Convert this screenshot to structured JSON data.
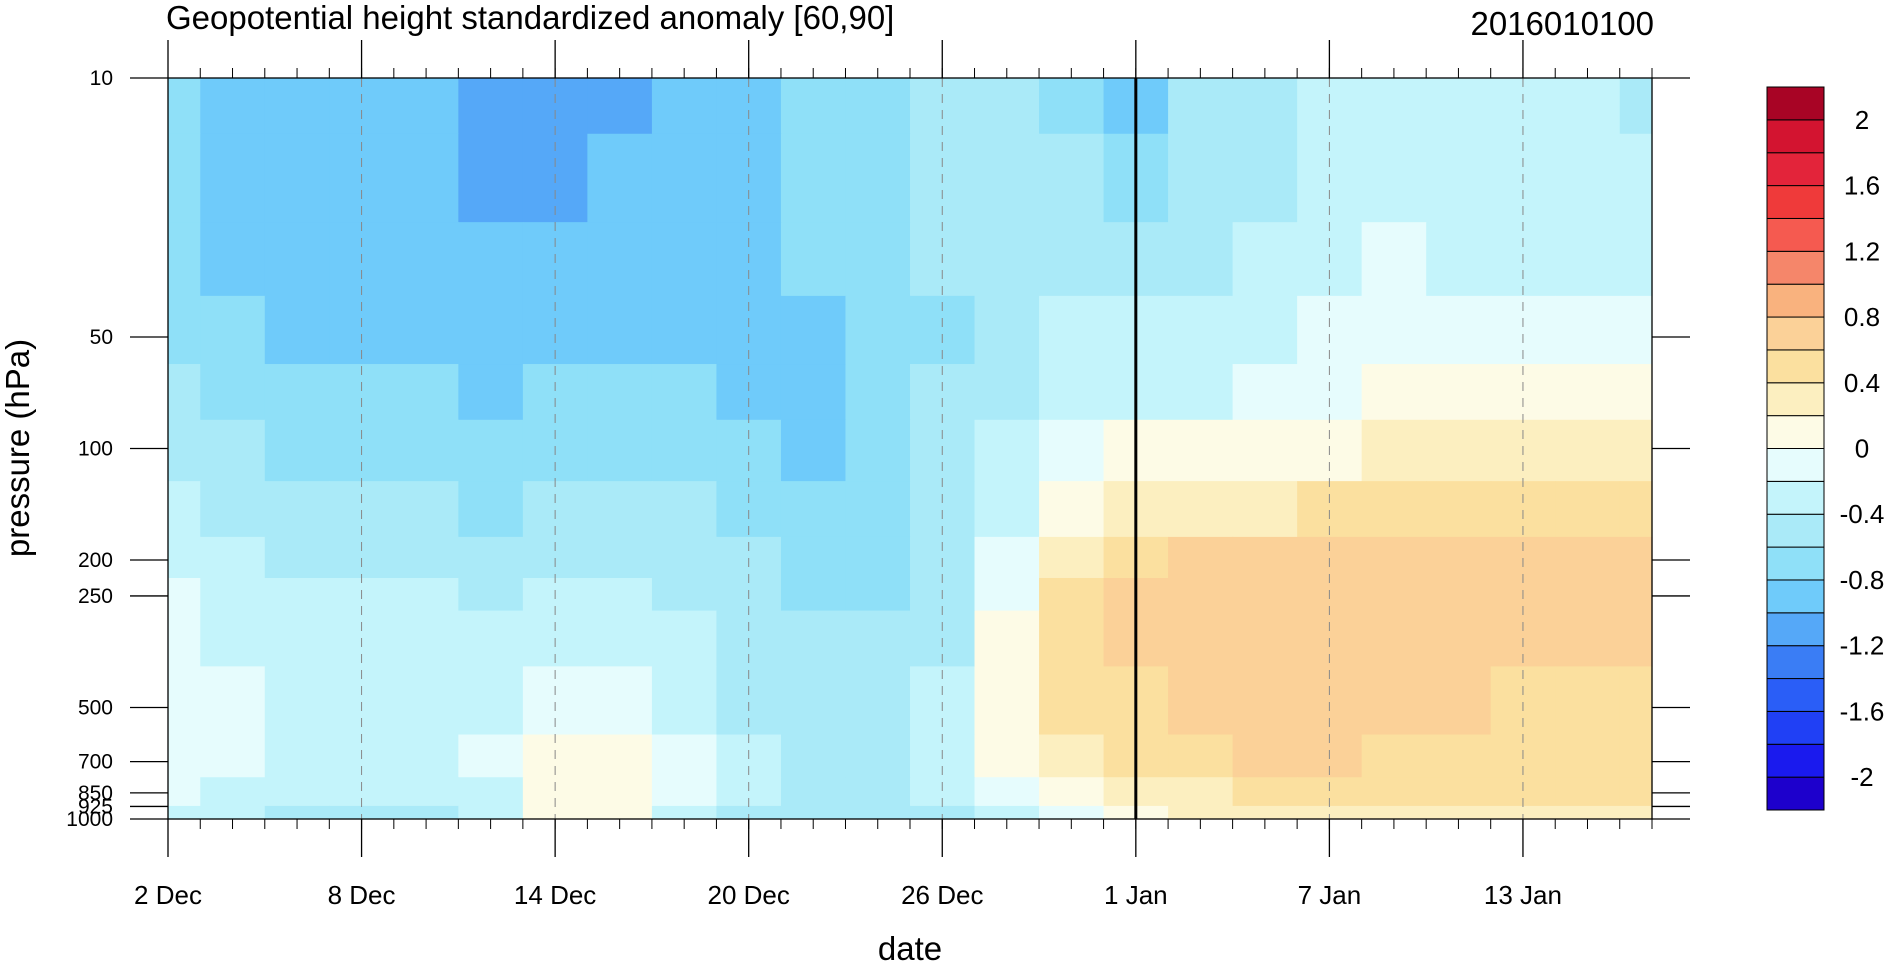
{
  "chart_data": {
    "type": "heatmap",
    "title": "Geopotential height standardized anomaly [60,90]",
    "subtitle": "2016010100",
    "xlabel": "date",
    "ylabel": "pressure (hPa)",
    "x_axis": {
      "kind": "date",
      "start": "2015-12-02",
      "end": "2016-01-17",
      "tick_dates": [
        "2015-12-02",
        "2015-12-08",
        "2015-12-14",
        "2015-12-20",
        "2015-12-26",
        "2016-01-01",
        "2016-01-07",
        "2016-01-13"
      ],
      "tick_labels": [
        "2 Dec",
        "8 Dec",
        "14 Dec",
        "20 Dec",
        "26 Dec",
        "1 Jan",
        "7 Jan",
        "13 Jan"
      ],
      "minor_tick_interval_days": 1,
      "dashed_gridlines_at_labeled_ticks": true
    },
    "y_axis": {
      "kind": "pressure",
      "scale": "log",
      "reversed": true,
      "range": [
        10,
        1000
      ],
      "tick_values": [
        10,
        50,
        100,
        200,
        250,
        500,
        700,
        850,
        925,
        1000
      ],
      "tick_labels": [
        "10",
        "50",
        "100",
        "200",
        "250",
        "500",
        "700",
        "850",
        "925",
        "1000"
      ]
    },
    "reference_line": {
      "date": "2016-01-01",
      "style": "solid-black"
    },
    "colorbar": {
      "placement": "right",
      "levels": [
        -2.2,
        -2.0,
        -1.8,
        -1.6,
        -1.4,
        -1.2,
        -1.0,
        -0.8,
        -0.6,
        -0.4,
        -0.2,
        0,
        0.2,
        0.4,
        0.6,
        0.8,
        1.0,
        1.2,
        1.4,
        1.6,
        1.8,
        2.0,
        2.2
      ],
      "colors": [
        "#1d00cc",
        "#1a1aee",
        "#2040f5",
        "#2a5ef7",
        "#3a7df5",
        "#55a8f8",
        "#6fcbfa",
        "#8fe0f8",
        "#aaeaf8",
        "#c4f4fb",
        "#e6fcfd",
        "#fdfbe6",
        "#fcefc0",
        "#fbe09f",
        "#fbd198",
        "#f9b27e",
        "#f5866a",
        "#f55a50",
        "#ef3a3a",
        "#e3243a",
        "#d31430",
        "#a80425"
      ],
      "labels": [
        "2",
        "1.6",
        "1.2",
        "0.8",
        "0.4",
        "0",
        "-0.4",
        "-0.8",
        "-1.2",
        "-1.6",
        "-2"
      ],
      "label_values": [
        2,
        1.6,
        1.2,
        0.8,
        0.4,
        0,
        -0.4,
        -0.8,
        -1.2,
        -1.6,
        -2
      ]
    },
    "field": {
      "description_of_grid": "standardized anomaly at sampled dates (columns) and pressure levels (rows)",
      "pressure_levels": [
        10,
        20,
        30,
        50,
        70,
        100,
        150,
        200,
        250,
        300,
        500,
        700,
        850,
        1000
      ],
      "dates": [
        "2015-12-02",
        "2015-12-04",
        "2015-12-06",
        "2015-12-08",
        "2015-12-10",
        "2015-12-12",
        "2015-12-14",
        "2015-12-16",
        "2015-12-18",
        "2015-12-20",
        "2015-12-22",
        "2015-12-24",
        "2015-12-26",
        "2015-12-28",
        "2015-12-30",
        "2016-01-01",
        "2016-01-03",
        "2016-01-05",
        "2016-01-07",
        "2016-01-09",
        "2016-01-11",
        "2016-01-13",
        "2016-01-15",
        "2016-01-17"
      ],
      "values": [
        [
          -0.7,
          -0.9,
          -0.9,
          -0.9,
          -0.9,
          -1.1,
          -1.1,
          -1.1,
          -0.9,
          -0.9,
          -0.7,
          -0.7,
          -0.6,
          -0.5,
          -0.8,
          -0.9,
          -0.6,
          -0.5,
          -0.4,
          -0.4,
          -0.4,
          -0.4,
          -0.4,
          -0.5
        ],
        [
          -0.7,
          -0.9,
          -0.9,
          -0.9,
          -1.0,
          -1.1,
          -1.1,
          -1.0,
          -0.9,
          -0.9,
          -0.8,
          -0.7,
          -0.6,
          -0.5,
          -0.6,
          -0.8,
          -0.6,
          -0.5,
          -0.4,
          -0.3,
          -0.4,
          -0.4,
          -0.4,
          -0.4
        ],
        [
          -0.7,
          -0.9,
          -0.9,
          -0.9,
          -0.9,
          -1.0,
          -1.0,
          -0.9,
          -0.9,
          -0.9,
          -0.8,
          -0.7,
          -0.6,
          -0.5,
          -0.5,
          -0.6,
          -0.5,
          -0.4,
          -0.3,
          -0.2,
          -0.3,
          -0.3,
          -0.3,
          -0.3
        ],
        [
          -0.7,
          -0.8,
          -0.9,
          -0.9,
          -0.9,
          -0.9,
          -0.9,
          -0.9,
          -0.9,
          -0.9,
          -0.9,
          -0.8,
          -0.7,
          -0.5,
          -0.4,
          -0.4,
          -0.4,
          -0.3,
          -0.2,
          -0.2,
          -0.2,
          -0.2,
          -0.2,
          -0.2
        ],
        [
          -0.6,
          -0.7,
          -0.8,
          -0.8,
          -0.8,
          -0.9,
          -0.8,
          -0.8,
          -0.8,
          -0.9,
          -0.9,
          -0.8,
          -0.6,
          -0.5,
          -0.3,
          -0.3,
          -0.3,
          -0.2,
          -0.1,
          0.0,
          0.0,
          0.0,
          0.1,
          0.1
        ],
        [
          -0.5,
          -0.6,
          -0.7,
          -0.7,
          -0.7,
          -0.8,
          -0.7,
          -0.7,
          -0.7,
          -0.8,
          -0.9,
          -0.8,
          -0.6,
          -0.4,
          -0.1,
          0.1,
          0.1,
          0.1,
          0.1,
          0.2,
          0.2,
          0.2,
          0.2,
          0.2
        ],
        [
          -0.4,
          -0.5,
          -0.6,
          -0.6,
          -0.6,
          -0.7,
          -0.6,
          -0.6,
          -0.6,
          -0.7,
          -0.8,
          -0.8,
          -0.6,
          -0.3,
          0.1,
          0.3,
          0.3,
          0.3,
          0.4,
          0.4,
          0.4,
          0.4,
          0.4,
          0.4
        ],
        [
          -0.3,
          -0.4,
          -0.5,
          -0.5,
          -0.5,
          -0.6,
          -0.5,
          -0.5,
          -0.5,
          -0.6,
          -0.7,
          -0.7,
          -0.6,
          -0.2,
          0.3,
          0.5,
          0.6,
          0.6,
          0.6,
          0.6,
          0.6,
          0.6,
          0.6,
          0.6
        ],
        [
          -0.2,
          -0.3,
          -0.4,
          -0.4,
          -0.4,
          -0.5,
          -0.4,
          -0.4,
          -0.5,
          -0.6,
          -0.7,
          -0.7,
          -0.5,
          -0.1,
          0.4,
          0.7,
          0.6,
          0.6,
          0.6,
          0.6,
          0.6,
          0.6,
          0.6,
          0.7
        ],
        [
          -0.2,
          -0.3,
          -0.4,
          -0.4,
          -0.4,
          -0.4,
          -0.3,
          -0.4,
          -0.4,
          -0.5,
          -0.6,
          -0.6,
          -0.5,
          0.0,
          0.4,
          0.6,
          0.6,
          0.6,
          0.6,
          0.6,
          0.6,
          0.6,
          0.6,
          0.6
        ],
        [
          -0.1,
          -0.2,
          -0.3,
          -0.3,
          -0.3,
          -0.3,
          -0.1,
          -0.1,
          -0.3,
          -0.5,
          -0.6,
          -0.6,
          -0.4,
          0.1,
          0.4,
          0.5,
          0.6,
          0.7,
          0.7,
          0.6,
          0.6,
          0.5,
          0.5,
          0.5
        ],
        [
          -0.1,
          -0.2,
          -0.3,
          -0.3,
          -0.3,
          -0.2,
          0.0,
          0.1,
          -0.2,
          -0.4,
          -0.5,
          -0.5,
          -0.3,
          0.0,
          0.3,
          0.4,
          0.5,
          0.6,
          0.6,
          0.5,
          0.5,
          0.5,
          0.5,
          0.5
        ],
        [
          -0.2,
          -0.3,
          -0.4,
          -0.4,
          -0.4,
          -0.3,
          0.1,
          0.1,
          -0.2,
          -0.4,
          -0.5,
          -0.5,
          -0.4,
          -0.2,
          0.0,
          0.2,
          0.3,
          0.4,
          0.4,
          0.4,
          0.4,
          0.4,
          0.4,
          0.4
        ],
        [
          -0.3,
          -0.4,
          -0.5,
          -0.5,
          -0.5,
          -0.4,
          0.0,
          0.0,
          -0.3,
          -0.5,
          -0.6,
          -0.6,
          -0.5,
          -0.4,
          -0.2,
          0.0,
          0.2,
          0.3,
          0.3,
          0.3,
          0.3,
          0.3,
          0.3,
          0.3
        ]
      ]
    }
  }
}
